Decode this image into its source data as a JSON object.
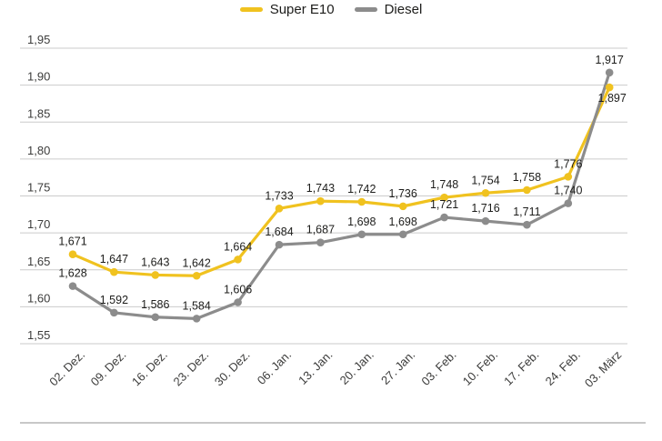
{
  "chart_data": {
    "type": "line",
    "title": "",
    "categories": [
      "02. Dez.",
      "09. Dez.",
      "16. Dez.",
      "23. Dez.",
      "30. Dez.",
      "06. Jan.",
      "13. Jan.",
      "20. Jan.",
      "27. Jan.",
      "03. Feb.",
      "10. Feb.",
      "17. Feb.",
      "24. Feb.",
      "03. März"
    ],
    "series": [
      {
        "name": "Super E10",
        "color": "#F0C21F",
        "values": [
          1.671,
          1.647,
          1.643,
          1.642,
          1.664,
          1.733,
          1.743,
          1.742,
          1.736,
          1.748,
          1.754,
          1.758,
          1.776,
          1.897
        ],
        "labels": [
          "1,671",
          "1,647",
          "1,643",
          "1,642",
          "1,664",
          "1,733",
          "1,743",
          "1,742",
          "1,736",
          "1,748",
          "1,754",
          "1,758",
          "1,776",
          "1,897"
        ]
      },
      {
        "name": "Diesel",
        "color": "#8C8C8C",
        "values": [
          1.628,
          1.592,
          1.586,
          1.584,
          1.606,
          1.684,
          1.687,
          1.698,
          1.698,
          1.721,
          1.716,
          1.711,
          1.74,
          1.917
        ],
        "labels": [
          "1,628",
          "1,592",
          "1,586",
          "1,584",
          "1,606",
          "1,684",
          "1,687",
          "1,698",
          "1,698",
          "1,721",
          "1,716",
          "1,711",
          "1,740",
          "1,917"
        ]
      }
    ],
    "ylim": [
      1.55,
      1.95
    ],
    "ytick_step": 0.05,
    "ytick_labels": [
      "1,95",
      "1,90",
      "1,85",
      "1,80",
      "1,75",
      "1,70",
      "1,65",
      "1,60",
      "1,55"
    ],
    "grid": "horizontal",
    "legend_position": "top-center",
    "xlabel": "",
    "ylabel": "",
    "label_overrides": {
      "series0": {
        "13": {
          "dx": 3,
          "dy": 16
        }
      }
    }
  },
  "colors": {
    "grid": "#cbcbcb",
    "axis_text": "#3c3c3b",
    "data_label_text": "#1d1d1b",
    "divider": "#c8c8c8",
    "background": "#ffffff"
  }
}
